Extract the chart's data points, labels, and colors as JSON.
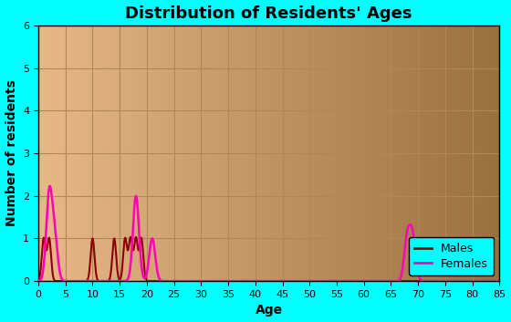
{
  "title": "Distribution of Residents' Ages",
  "xlabel": "Age",
  "ylabel": "Number of residents",
  "xlim": [
    0,
    85
  ],
  "ylim": [
    0,
    6
  ],
  "xticks": [
    0,
    5,
    10,
    15,
    20,
    25,
    30,
    35,
    40,
    45,
    50,
    55,
    60,
    65,
    70,
    75,
    80,
    85
  ],
  "yticks": [
    0,
    1,
    2,
    3,
    4,
    5,
    6
  ],
  "bg_outer": "#00ffff",
  "bg_inner_left": "#e8b887",
  "bg_inner_right": "#9b7040",
  "grid_color": "#b08858",
  "males_color": "#8b0000",
  "females_color": "#ff00bb",
  "males_ages": [
    1,
    2,
    10,
    14,
    16,
    17,
    18,
    19
  ],
  "males_counts": [
    1,
    1,
    1,
    1,
    1,
    1,
    1,
    1
  ],
  "females_ages": [
    2,
    3,
    18,
    21,
    68,
    69
  ],
  "females_counts": [
    2,
    1,
    2,
    1,
    1,
    1
  ],
  "legend_bg": "#00ffff",
  "legend_edge": "#000000",
  "title_fontsize": 13,
  "label_fontsize": 10,
  "tick_fontsize": 8,
  "males_sigma": 0.35,
  "females_sigma": 0.55
}
